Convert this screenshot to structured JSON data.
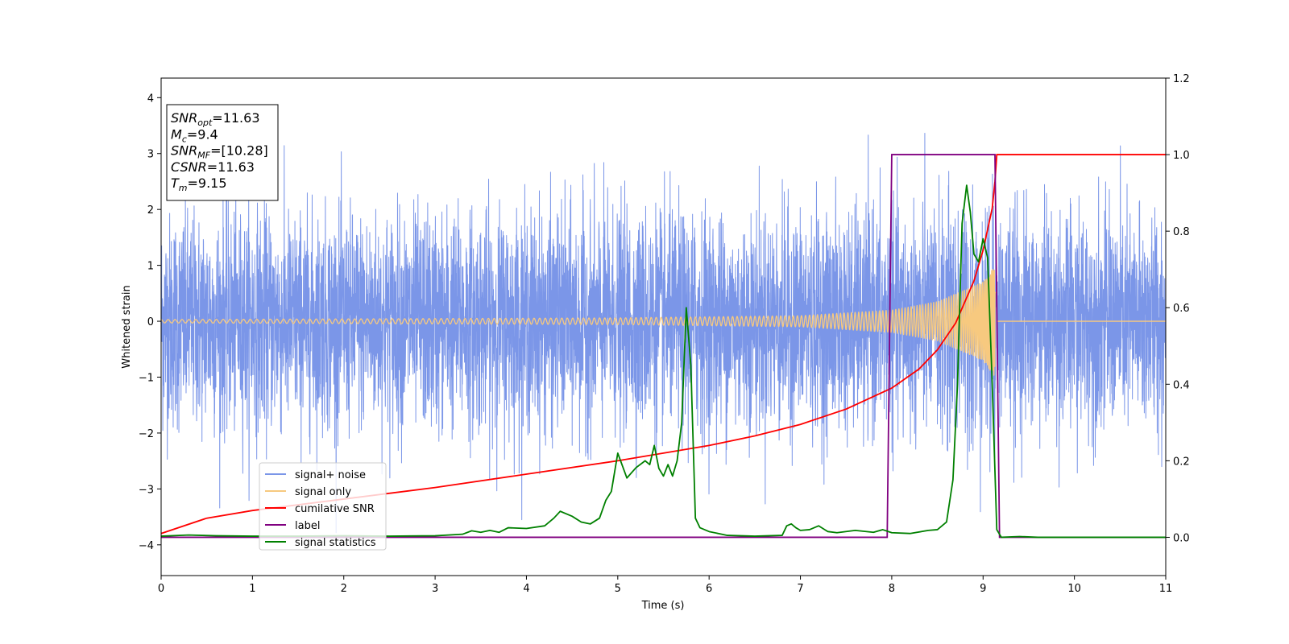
{
  "chart_data": {
    "type": "line",
    "xlabel": "Time (s)",
    "ylabel": "Whitened strain",
    "xlim": [
      0,
      11
    ],
    "ylim": [
      -4.55,
      4.35
    ],
    "y2lim": [
      -0.1,
      1.2
    ],
    "xticks": [
      "0",
      "1",
      "2",
      "3",
      "4",
      "5",
      "6",
      "7",
      "8",
      "9",
      "10",
      "11"
    ],
    "yticks": [
      "−4",
      "−3",
      "−2",
      "−1",
      "0",
      "1",
      "2",
      "3",
      "4"
    ],
    "y2ticks": [
      "0.0",
      "0.2",
      "0.4",
      "0.6",
      "0.8",
      "1.0",
      "1.2"
    ],
    "grid": false,
    "legend_position": "lower-left",
    "annotation": {
      "lines": [
        {
          "base": "SNR",
          "sub": "opt",
          "rest": "=11.63"
        },
        {
          "base": "M",
          "sub": "c",
          "rest": "=9.4"
        },
        {
          "base": "SNR",
          "sub": "MF",
          "rest": "=[10.28]"
        },
        {
          "base": "CSNR",
          "sub": "",
          "rest": "=11.63"
        },
        {
          "base": "T",
          "sub": "m",
          "rest": "=9.15"
        }
      ]
    },
    "series": [
      {
        "name": "signal+ noise",
        "color": "#7b96e8",
        "axis": "left",
        "approx_noise_std": 0.95,
        "approx_range": [
          -4.1,
          3.95
        ]
      },
      {
        "name": "signal only",
        "color": "#f7c97f",
        "axis": "left",
        "approx_envelope": {
          "x": [
            0,
            5,
            7,
            8,
            8.5,
            9.0,
            9.15
          ],
          "y": [
            0.03,
            0.06,
            0.1,
            0.2,
            0.35,
            0.7,
            1.05
          ]
        },
        "zero_after": 9.15
      },
      {
        "name": "cumilative SNR",
        "color": "#ff0000",
        "axis": "right",
        "x": [
          0,
          0.5,
          1,
          2,
          3,
          4,
          5,
          5.5,
          6,
          6.5,
          7,
          7.5,
          8,
          8.3,
          8.5,
          8.7,
          8.9,
          9.0,
          9.1,
          9.13,
          9.15,
          11
        ],
        "y": [
          0.01,
          0.05,
          0.07,
          0.1,
          0.13,
          0.165,
          0.2,
          0.22,
          0.24,
          0.265,
          0.295,
          0.335,
          0.39,
          0.44,
          0.49,
          0.56,
          0.67,
          0.75,
          0.86,
          0.93,
          1.0,
          1.0
        ]
      },
      {
        "name": "label",
        "color": "#800080",
        "axis": "right",
        "x": [
          0,
          7.95,
          8.0,
          9.13,
          9.18,
          11
        ],
        "y": [
          0,
          0,
          1,
          1,
          0,
          0
        ]
      },
      {
        "name": "signal statistics",
        "color": "#008000",
        "axis": "right",
        "x": [
          0,
          0.3,
          0.6,
          1,
          1.5,
          2,
          2.5,
          3,
          3.3,
          3.4,
          3.5,
          3.6,
          3.7,
          3.8,
          4.0,
          4.2,
          4.3,
          4.37,
          4.5,
          4.6,
          4.7,
          4.8,
          4.87,
          4.93,
          5.0,
          5.1,
          5.2,
          5.3,
          5.35,
          5.4,
          5.45,
          5.5,
          5.55,
          5.6,
          5.65,
          5.7,
          5.75,
          5.8,
          5.85,
          5.9,
          6.0,
          6.2,
          6.5,
          6.8,
          6.85,
          6.9,
          6.95,
          7.0,
          7.1,
          7.2,
          7.3,
          7.4,
          7.6,
          7.8,
          7.9,
          8.0,
          8.2,
          8.4,
          8.5,
          8.6,
          8.67,
          8.72,
          8.77,
          8.82,
          8.86,
          8.9,
          8.95,
          9.0,
          9.05,
          9.1,
          9.15,
          9.2,
          9.4,
          9.6,
          10,
          10.5,
          11
        ],
        "y": [
          0.003,
          0.006,
          0.004,
          0.003,
          0.003,
          0.004,
          0.003,
          0.004,
          0.008,
          0.017,
          0.013,
          0.018,
          0.013,
          0.025,
          0.023,
          0.03,
          0.05,
          0.068,
          0.055,
          0.04,
          0.035,
          0.05,
          0.097,
          0.12,
          0.22,
          0.155,
          0.182,
          0.2,
          0.19,
          0.24,
          0.18,
          0.16,
          0.19,
          0.16,
          0.2,
          0.3,
          0.6,
          0.45,
          0.05,
          0.025,
          0.015,
          0.005,
          0.003,
          0.005,
          0.03,
          0.035,
          0.025,
          0.018,
          0.02,
          0.03,
          0.015,
          0.012,
          0.018,
          0.013,
          0.02,
          0.012,
          0.01,
          0.018,
          0.02,
          0.04,
          0.15,
          0.4,
          0.82,
          0.92,
          0.85,
          0.74,
          0.72,
          0.78,
          0.73,
          0.4,
          0.02,
          0.0,
          0.002,
          0.0,
          0.0,
          0.0,
          0.0
        ]
      }
    ]
  }
}
